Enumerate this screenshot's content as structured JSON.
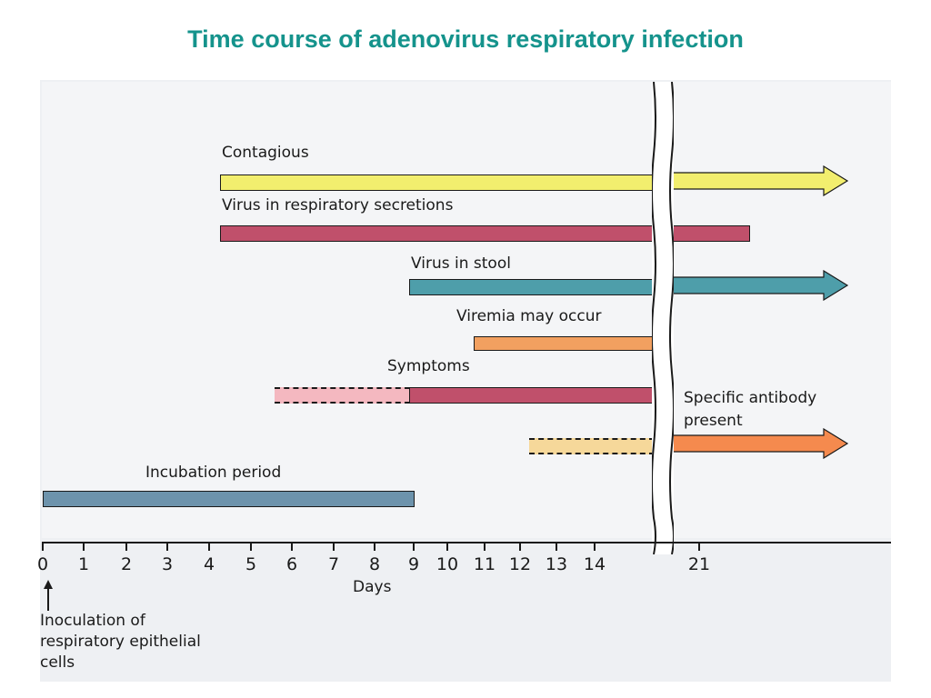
{
  "title": "Time course of adenovirus respiratory infection",
  "colors": {
    "title": "#15938c",
    "yellow": "#f2ee6e",
    "crimson": "#c0506b",
    "teal": "#4e9eaa",
    "orange": "#f2a060",
    "pink": "#f4b8c0",
    "peach": "#f6d89a",
    "bright_orange": "#f58a4e",
    "blue": "#6d93ac"
  },
  "chart_data": {
    "type": "timeline",
    "xlabel": "Days",
    "tick_labels": [
      "0",
      "1",
      "2",
      "3",
      "4",
      "5",
      "6",
      "7",
      "8",
      "9",
      "10",
      "11",
      "12",
      "13",
      "14",
      "21"
    ],
    "rows": [
      {
        "label": "Contagious",
        "start_day": 4.2,
        "end": "ongoing",
        "arrow": true
      },
      {
        "label": "Virus in respiratory secretions",
        "start_day": 4.2,
        "end": "past 21",
        "arrow": false
      },
      {
        "label": "Virus in stool",
        "start_day": 8.9,
        "end": "ongoing",
        "arrow": true
      },
      {
        "label": "Viremia may occur",
        "start_day": 10.7,
        "end_day": 14.8,
        "arrow": false
      },
      {
        "label": "Symptoms",
        "dashed_from_day": 5.6,
        "start_day": 8.9,
        "end_day": 14.8,
        "arrow": false
      },
      {
        "label": "Specific antibody present",
        "dashed_from_day": 12.2,
        "start_day": 14.8,
        "end": "ongoing",
        "arrow": true
      },
      {
        "label": "Incubation period",
        "start_day": 0,
        "end_day": 9,
        "arrow": false
      }
    ],
    "annotation": "Inoculation of respiratory epithelial cells"
  }
}
